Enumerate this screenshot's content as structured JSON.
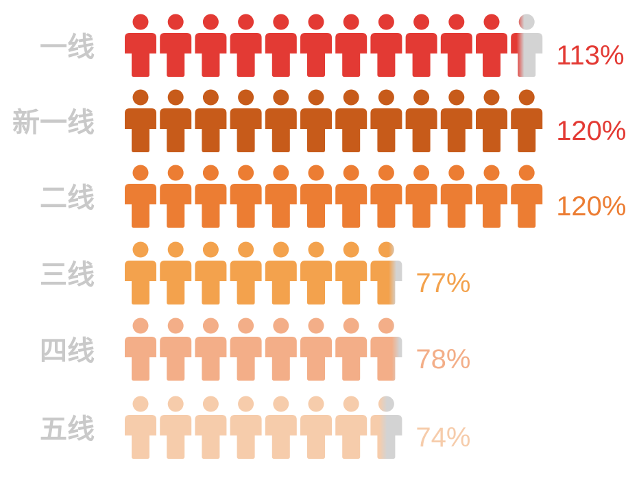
{
  "chart_data": {
    "type": "pictogram",
    "unit_value": 10,
    "categories": [
      "一线",
      "新一线",
      "二线",
      "三线",
      "四线",
      "五线"
    ],
    "values": [
      113,
      120,
      120,
      77,
      78,
      74
    ],
    "value_labels": [
      "113%",
      "120%",
      "120%",
      "77%",
      "78%",
      "74%"
    ],
    "colors": [
      "#e33a34",
      "#c75b1a",
      "#ec7d33",
      "#f3a24d",
      "#f3ae88",
      "#f6ccab"
    ],
    "label_color": "#c9c9c9",
    "faded_color": "#d3d3d3",
    "icon": "person-icon"
  }
}
